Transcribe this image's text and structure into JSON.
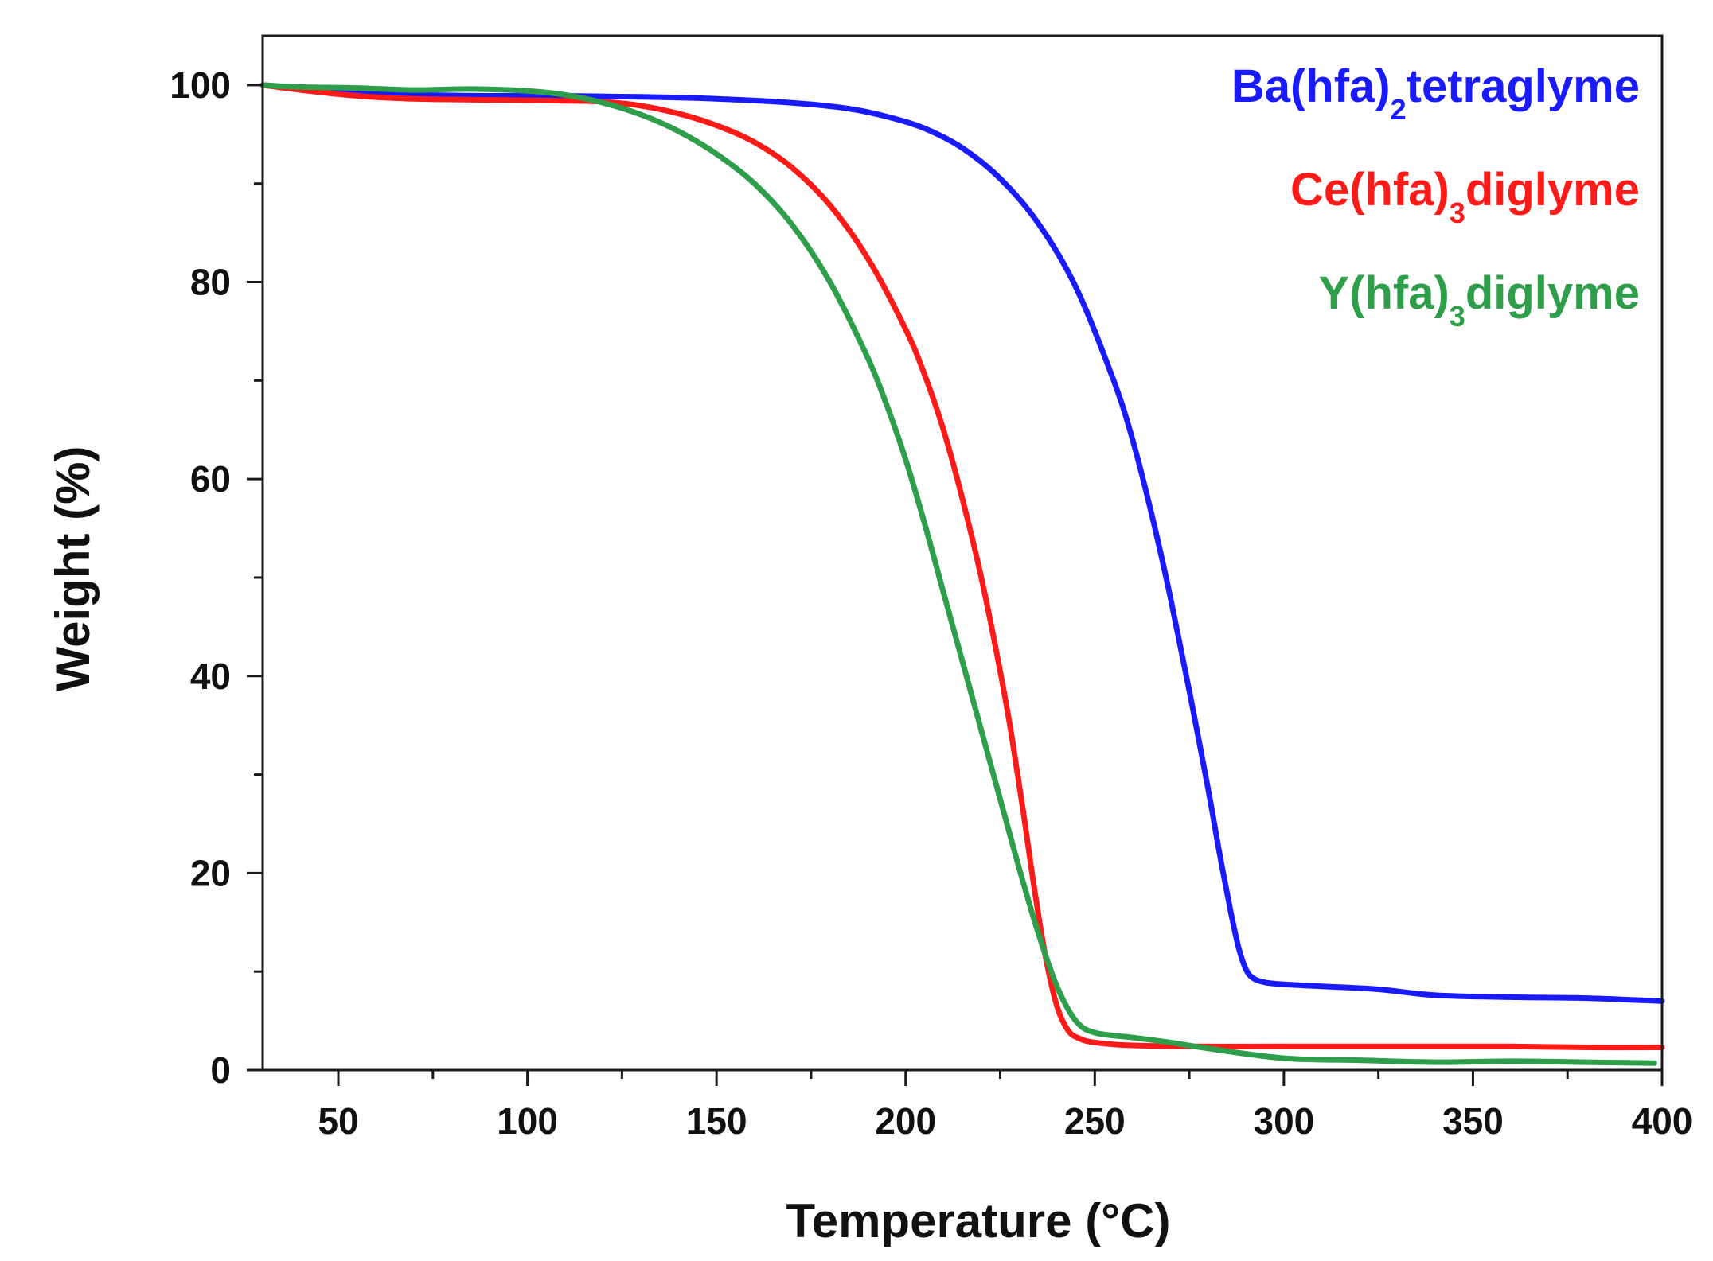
{
  "chart_data": {
    "type": "line",
    "title": "",
    "xlabel": "Temperature (°C)",
    "ylabel": "Weight (%)",
    "xlim": [
      30,
      400
    ],
    "ylim": [
      0,
      105
    ],
    "x_ticks": [
      50,
      100,
      150,
      200,
      250,
      300,
      350,
      400
    ],
    "x_minor_ticks": [
      75,
      125,
      175,
      225,
      275,
      325,
      375
    ],
    "y_ticks": [
      0,
      20,
      40,
      60,
      80,
      100
    ],
    "y_minor_ticks": [
      10,
      30,
      50,
      70,
      90
    ],
    "grid": false,
    "legend_position": "top-right",
    "series": [
      {
        "name": "Ba(hfa)2tetraglyme",
        "label_main": "Ba(hfa)",
        "label_sub": "2",
        "label_tail": "tetraglyme",
        "color": "#1a1aff",
        "x": [
          30,
          40,
          55,
          70,
          90,
          110,
          130,
          150,
          170,
          185,
          195,
          205,
          215,
          225,
          235,
          245,
          255,
          260,
          265,
          270,
          275,
          280,
          283,
          286,
          288,
          290,
          292,
          295,
          300,
          310,
          325,
          340,
          360,
          380,
          400
        ],
        "y": [
          100,
          99.7,
          99.2,
          99.0,
          98.9,
          98.9,
          98.8,
          98.6,
          98.2,
          97.6,
          96.8,
          95.6,
          93.6,
          90.5,
          86.0,
          79.5,
          70.0,
          64.0,
          56.5,
          48.0,
          38.5,
          28.5,
          22.0,
          16.0,
          12.5,
          10.2,
          9.3,
          8.9,
          8.7,
          8.5,
          8.2,
          7.6,
          7.4,
          7.3,
          7.0
        ]
      },
      {
        "name": "Ce(hfa)3diglyme",
        "label_main": "Ce(hfa)",
        "label_sub": "3",
        "label_tail": "diglyme",
        "color": "#ff1a1a",
        "x": [
          30,
          40,
          55,
          70,
          90,
          110,
          120,
          130,
          140,
          150,
          160,
          170,
          180,
          190,
          200,
          205,
          210,
          215,
          220,
          225,
          228,
          231,
          234,
          237,
          240,
          243,
          246,
          250,
          260,
          280,
          300,
          330,
          360,
          380,
          400
        ],
        "y": [
          100,
          99.5,
          98.9,
          98.6,
          98.5,
          98.4,
          98.3,
          97.9,
          97.1,
          95.9,
          94.2,
          91.6,
          87.8,
          82.4,
          75.2,
          70.6,
          65.0,
          58.0,
          50.0,
          40.5,
          34.0,
          26.5,
          18.5,
          11.5,
          6.5,
          4.0,
          3.2,
          2.8,
          2.5,
          2.4,
          2.4,
          2.4,
          2.4,
          2.3,
          2.3
        ]
      },
      {
        "name": "Y(hfa)3diglyme",
        "label_main": "Y(hfa)",
        "label_sub": "3",
        "label_tail": "diglyme",
        "color": "#2e9e4a",
        "x": [
          30,
          40,
          55,
          70,
          85,
          100,
          110,
          120,
          130,
          140,
          150,
          160,
          170,
          180,
          190,
          195,
          200,
          205,
          210,
          215,
          220,
          225,
          230,
          235,
          240,
          245,
          250,
          260,
          270,
          280,
          300,
          320,
          340,
          360,
          380,
          398
        ],
        "y": [
          100,
          99.8,
          99.7,
          99.5,
          99.6,
          99.4,
          99.0,
          98.2,
          97.0,
          95.3,
          93.0,
          90.0,
          85.8,
          80.0,
          72.3,
          67.5,
          62.0,
          55.5,
          48.5,
          41.5,
          34.5,
          27.5,
          20.5,
          14.0,
          8.5,
          5.0,
          3.8,
          3.3,
          2.8,
          2.2,
          1.2,
          1.0,
          0.8,
          0.9,
          0.8,
          0.7
        ]
      }
    ]
  }
}
